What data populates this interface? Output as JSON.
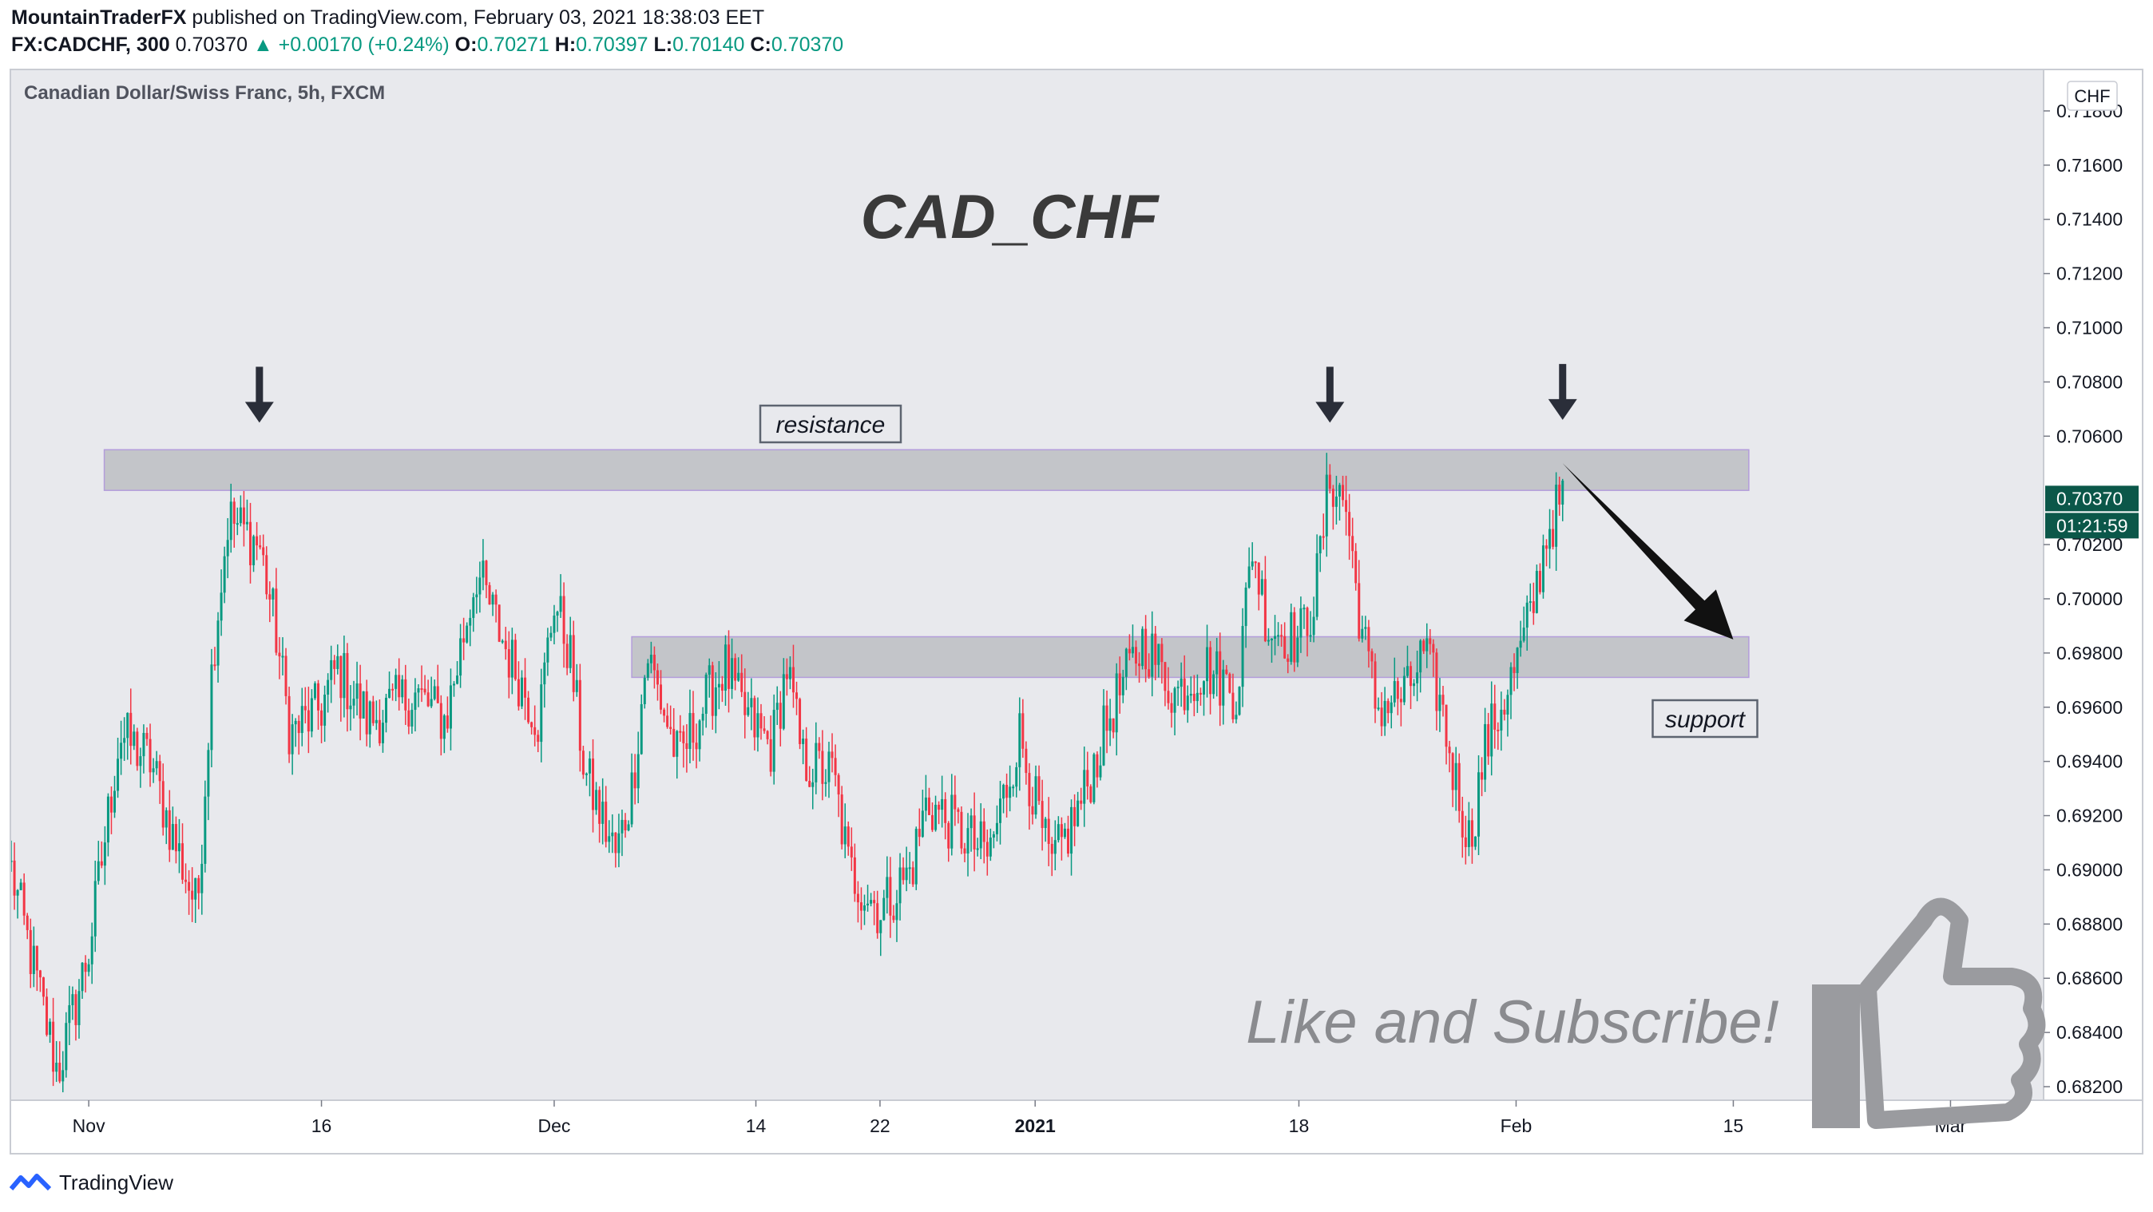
{
  "header": {
    "author": "MountainTraderFX",
    "published": "published on TradingView.com, February 03, 2021 18:38:03 EET",
    "symbol": "FX:CADCHF, 300",
    "last": "0.70370",
    "change": "+0.00170 (+0.24%)",
    "o_label": "O:",
    "o": "0.70271",
    "h_label": "H:",
    "h": "0.70397",
    "l_label": "L:",
    "l": "0.70140",
    "c_label": "C:",
    "c": "0.70370"
  },
  "footer": {
    "brand": "TradingView"
  },
  "colors": {
    "up": "#089981",
    "down": "#f23645",
    "zone": "#b7b8bc",
    "zone_border": "#b39ddb",
    "bg": "#e8e9ed"
  },
  "chart_data": {
    "type": "candlestick",
    "title": "Canadian Dollar/Swiss Franc, 5h, FXCM",
    "currency": "CHF",
    "ylim": [
      0.6815,
      0.7195
    ],
    "yticks": [
      "0.71800",
      "0.71600",
      "0.71400",
      "0.71200",
      "0.71000",
      "0.70800",
      "0.70600",
      "0.70200",
      "0.70000",
      "0.69800",
      "0.69600",
      "0.69400",
      "0.69200",
      "0.69000",
      "0.68800",
      "0.68600",
      "0.68400",
      "0.68200"
    ],
    "xticks": [
      "Nov",
      "16",
      "Dec",
      "14",
      "22",
      "2021",
      "18",
      "Feb",
      "15",
      "Mar"
    ],
    "xtick_values": [
      "2020-11-01",
      "2020-11-16",
      "2020-12-01",
      "2020-12-14",
      "2020-12-22",
      "2021-01-01",
      "2021-01-18",
      "2021-02-01",
      "2021-02-15",
      "2021-03-01"
    ],
    "x_range": [
      "2020-10-27",
      "2021-03-07"
    ],
    "last_price_label": "0.70370",
    "countdown_label": "01:21:59",
    "annotations": {
      "chart_label": "CAD_CHF",
      "resistance_label": "resistance",
      "support_label": "support",
      "cta": "Like and Subscribe!"
    },
    "zones": [
      {
        "name": "resistance",
        "from_date": "2020-11-02",
        "to_date": "2021-02-16",
        "low": 0.704,
        "high": 0.7055
      },
      {
        "name": "support",
        "from_date": "2020-12-06",
        "to_date": "2021-02-16",
        "low": 0.6971,
        "high": 0.6986
      }
    ],
    "arrows_down": [
      {
        "date": "2020-11-12",
        "price": 0.7065
      },
      {
        "date": "2021-01-20",
        "price": 0.7065
      },
      {
        "date": "2021-02-04",
        "price": 0.7066
      }
    ],
    "projection": {
      "from_date": "2021-02-04",
      "from_price": 0.705,
      "to_date": "2021-02-15",
      "to_price": 0.6985
    },
    "pivots": [
      [
        "2020-10-27",
        0.69
      ],
      [
        "2020-10-29",
        0.685
      ],
      [
        "2020-10-30",
        0.6825
      ],
      [
        "2020-11-01",
        0.687
      ],
      [
        "2020-11-03",
        0.695
      ],
      [
        "2020-11-05",
        0.694
      ],
      [
        "2020-11-06",
        0.692
      ],
      [
        "2020-11-08",
        0.6885
      ],
      [
        "2020-11-09",
        0.698
      ],
      [
        "2020-11-10",
        0.703
      ],
      [
        "2020-11-12",
        0.702
      ],
      [
        "2020-11-13",
        0.699
      ],
      [
        "2020-11-14",
        0.695
      ],
      [
        "2020-11-16",
        0.696
      ],
      [
        "2020-11-17",
        0.6975
      ],
      [
        "2020-11-19",
        0.6955
      ],
      [
        "2020-11-22",
        0.6965
      ],
      [
        "2020-11-24",
        0.6955
      ],
      [
        "2020-11-26",
        0.701
      ],
      [
        "2020-11-28",
        0.698
      ],
      [
        "2020-11-30",
        0.6955
      ],
      [
        "2020-12-01",
        0.7
      ],
      [
        "2020-12-02",
        0.698
      ],
      [
        "2020-12-03",
        0.6935
      ],
      [
        "2020-12-05",
        0.6905
      ],
      [
        "2020-12-06",
        0.693
      ],
      [
        "2020-12-07",
        0.698
      ],
      [
        "2020-12-09",
        0.694
      ],
      [
        "2020-12-11",
        0.6965
      ],
      [
        "2020-12-12",
        0.6975
      ],
      [
        "2020-12-13",
        0.696
      ],
      [
        "2020-12-15",
        0.6945
      ],
      [
        "2020-12-16",
        0.6975
      ],
      [
        "2020-12-17",
        0.694
      ],
      [
        "2020-12-19",
        0.6935
      ],
      [
        "2020-12-20",
        0.69
      ],
      [
        "2020-12-22",
        0.6885
      ],
      [
        "2020-12-24",
        0.69
      ],
      [
        "2020-12-25",
        0.6925
      ],
      [
        "2020-12-27",
        0.6915
      ],
      [
        "2020-12-29",
        0.6905
      ],
      [
        "2020-12-31",
        0.695
      ],
      [
        "2021-01-01",
        0.6925
      ],
      [
        "2021-01-02",
        0.69
      ],
      [
        "2021-01-04",
        0.6925
      ],
      [
        "2021-01-06",
        0.696
      ],
      [
        "2021-01-08",
        0.6985
      ],
      [
        "2021-01-10",
        0.6965
      ],
      [
        "2021-01-12",
        0.6975
      ],
      [
        "2021-01-14",
        0.6965
      ],
      [
        "2021-01-15",
        0.702
      ],
      [
        "2021-01-16",
        0.699
      ],
      [
        "2021-01-18",
        0.6985
      ],
      [
        "2021-01-19",
        0.7
      ],
      [
        "2021-01-20",
        0.7045
      ],
      [
        "2021-01-21",
        0.7035
      ],
      [
        "2021-01-22",
        0.699
      ],
      [
        "2021-01-23",
        0.696
      ],
      [
        "2021-01-25",
        0.6965
      ],
      [
        "2021-01-26",
        0.698
      ],
      [
        "2021-01-27",
        0.6965
      ],
      [
        "2021-01-28",
        0.6935
      ],
      [
        "2021-01-29",
        0.691
      ],
      [
        "2021-01-30",
        0.6945
      ],
      [
        "2021-02-01",
        0.6975
      ],
      [
        "2021-02-02",
        0.6995
      ],
      [
        "2021-02-03",
        0.7025
      ],
      [
        "2021-02-04",
        0.7037
      ]
    ]
  }
}
